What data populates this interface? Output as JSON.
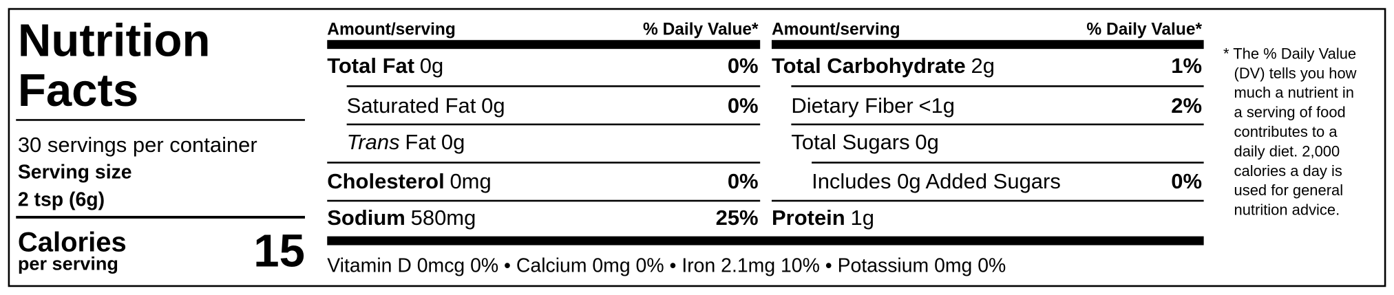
{
  "header": {
    "title_line1": "Nutrition",
    "title_line2": "Facts",
    "servings": "30 servings per container",
    "serving_size_label": "Serving size",
    "serving_size": "2 tsp (6g)",
    "calories_label": "Calories",
    "calories_sub": "per serving",
    "calories": "15"
  },
  "columns": [
    {
      "amount_header": "Amount/serving",
      "dv_header": "% Daily Value*",
      "rows": [
        {
          "name": "Total Fat",
          "amount": "0g",
          "dv": "0%",
          "level": 0
        },
        {
          "name": "Saturated Fat",
          "amount": "0g",
          "dv": "0%",
          "level": 1
        },
        {
          "italic": "Trans",
          "name": "Fat",
          "amount": "0g",
          "level": 1
        },
        {
          "name": "Cholesterol",
          "amount": "0mg",
          "dv": "0%",
          "level": 0
        },
        {
          "name": "Sodium",
          "amount": "580mg",
          "dv": "25%",
          "level": 0
        }
      ]
    },
    {
      "amount_header": "Amount/serving",
      "dv_header": "% Daily Value*",
      "rows": [
        {
          "name": "Total Carbohydrate",
          "amount": "2g",
          "dv": "1%",
          "level": 0
        },
        {
          "name": "Dietary Fiber",
          "amount": "<1g",
          "dv": "2%",
          "level": 1
        },
        {
          "name": "Total Sugars",
          "amount": "0g",
          "level": 1
        },
        {
          "name": "Includes 0g Added Sugars",
          "dv": "0%",
          "level": 2
        },
        {
          "name": "Protein",
          "amount": "1g",
          "level": 0
        }
      ]
    }
  ],
  "micronutrients": "Vitamin D 0mcg 0% • Calcium 0mg 0% • Iron 2.1mg 10% • Potassium 0mg 0%",
  "footnote": [
    "* The % Daily Value",
    "(DV) tells you how",
    "much a nutrient in",
    "a serving of food",
    "contributes to a",
    "daily diet. 2,000",
    "calories a day is",
    "used for general",
    "nutrition advice."
  ]
}
